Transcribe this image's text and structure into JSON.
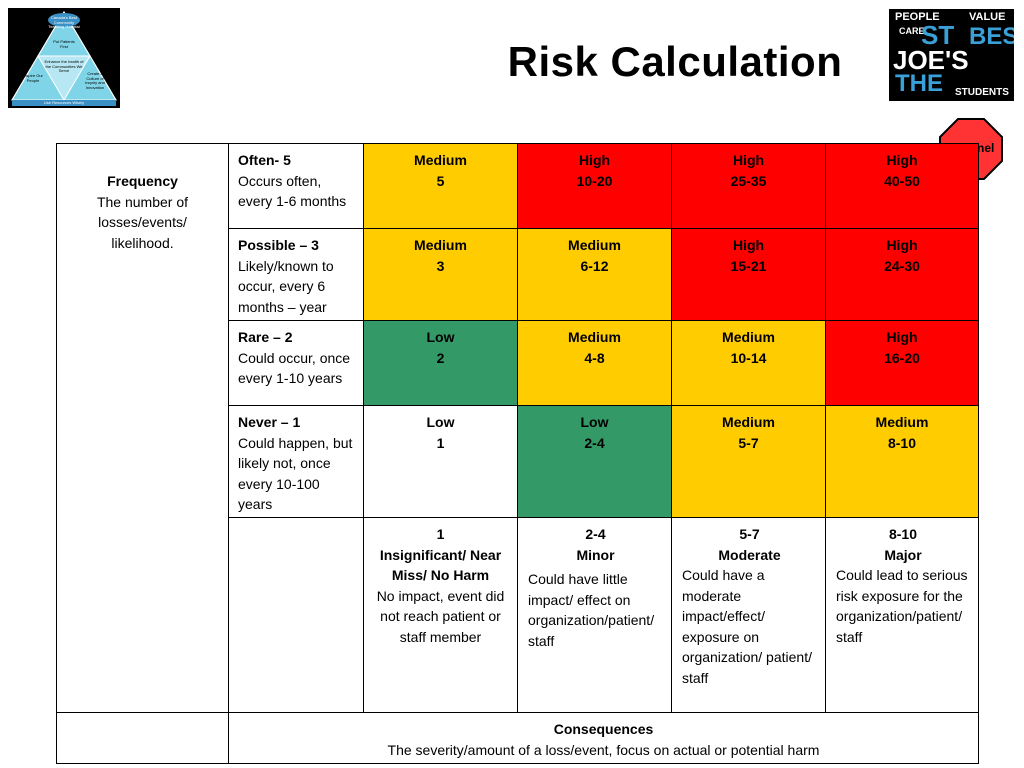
{
  "title": "Risk Calculation",
  "logo_left": {
    "top_text": "Canada's Best Community Teaching Hospital",
    "apex_text": "Put Patients First",
    "center_text": "Enhance the health of the Communities We Serve",
    "left_text": "Inspire Our People",
    "right_text": "Create a Culture of Inquiry and Innovation",
    "base_text": "Use Resources Wisely",
    "bg_color": "#000000",
    "triangle_color": "#7fd4e8"
  },
  "logo_right": {
    "words": [
      "PEOPLE",
      "VALUE",
      "CARE",
      "ST",
      "JOE'S",
      "BEST",
      "THE",
      "STUDENTS"
    ],
    "accent_color": "#3aa0d8"
  },
  "sentinel": {
    "label": "Sentinel",
    "color": "#ff3333"
  },
  "frequency": {
    "title": "Frequency",
    "desc": "The number of losses/events/ likelihood."
  },
  "rows": [
    {
      "name": "Often- 5",
      "desc": "Occurs often, every 1-6 months",
      "cells": [
        {
          "level": "Medium",
          "value": "5",
          "color": "#ffcc00"
        },
        {
          "level": "High",
          "value": "10-20",
          "color": "#ff0000"
        },
        {
          "level": "High",
          "value": "25-35",
          "color": "#ff0000"
        },
        {
          "level": "High",
          "value": "40-50",
          "color": "#ff0000"
        }
      ]
    },
    {
      "name": "Possible – 3",
      "desc": "Likely/known to occur, every 6 months – year",
      "cells": [
        {
          "level": "Medium",
          "value": "3",
          "color": "#ffcc00"
        },
        {
          "level": "Medium",
          "value": "6-12",
          "color": "#ffcc00"
        },
        {
          "level": "High",
          "value": "15-21",
          "color": "#ff0000"
        },
        {
          "level": "High",
          "value": "24-30",
          "color": "#ff0000"
        }
      ]
    },
    {
      "name": "Rare – 2",
      "desc": "Could occur, once every 1-10 years",
      "cells": [
        {
          "level": "Low",
          "value": "2",
          "color": "#339966"
        },
        {
          "level": "Medium",
          "value": "4-8",
          "color": "#ffcc00"
        },
        {
          "level": "Medium",
          "value": "10-14",
          "color": "#ffcc00"
        },
        {
          "level": "High",
          "value": "16-20",
          "color": "#ff0000"
        }
      ]
    },
    {
      "name": "Never – 1",
      "desc": "Could happen, but likely not, once every 10-100 years",
      "cells": [
        {
          "level": "Low",
          "value": "1",
          "color": "#ffffff"
        },
        {
          "level": "Low",
          "value": "2-4",
          "color": "#339966"
        },
        {
          "level": "Medium",
          "value": "5-7",
          "color": "#ffcc00"
        },
        {
          "level": "Medium",
          "value": "8-10",
          "color": "#ffcc00"
        }
      ]
    }
  ],
  "consequences": [
    {
      "score": "1",
      "name": "Insignificant/ Near Miss/ No Harm",
      "desc": "No impact, event did not reach patient or staff member"
    },
    {
      "score": "2-4",
      "name": "Minor",
      "desc": "Could have little impact/ effect on organization/patient/ staff"
    },
    {
      "score": "5-7",
      "name": "Moderate",
      "desc": "Could have a moderate impact/effect/ exposure on organization/ patient/ staff"
    },
    {
      "score": "8-10",
      "name": "Major",
      "desc": "Could lead to serious risk exposure for the organization/patient/ staff"
    }
  ],
  "footer": {
    "title": "Consequences",
    "desc": "The severity/amount of a loss/event, focus on actual or potential harm"
  }
}
